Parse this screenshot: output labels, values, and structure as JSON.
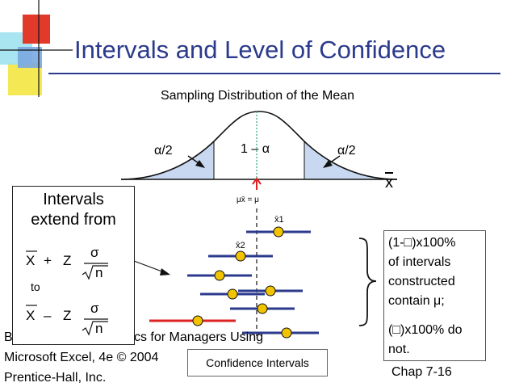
{
  "slide": {
    "title": "Intervals and Level of Confidence",
    "subtitle": "Sampling Distribution of the Mean",
    "chapter": "Chap 7-16",
    "footer_line1": "Basic Business Statistics for Managers Using",
    "footer_line2": "Microsoft Excel, 4e © 2004",
    "footer_line3": "Prentice-Hall, Inc."
  },
  "distribution": {
    "tail_left": "α/2",
    "tail_right": "α/2",
    "center": "1 – α",
    "axis": "x",
    "mean": "μx̄ = μ",
    "xbar1": "x̄1",
    "xbar2": "x̄2"
  },
  "left_box": {
    "heading_1": "Intervals",
    "heading_2": "extend from",
    "upper_formula": "X̄ + Z σ/√n",
    "to": "to",
    "lower_formula": "X̄ – Z σ/√n",
    "xbar": "X",
    "plus": "+",
    "minus": "–",
    "z": "Z",
    "sigma": "σ",
    "n": "n"
  },
  "right_box": {
    "line1": "(1-□)x100%",
    "line2": "of intervals",
    "line3": "constructed",
    "line4": "contain μ;",
    "line5": "(□)x100% do",
    "line6": "not."
  },
  "intervals_label": "Confidence Intervals",
  "colors": {
    "title": "#2b3a8c",
    "interval": "#2b3a8c",
    "missed_interval": "#dd2222",
    "point": "#f2c400",
    "tail_fill": "#c8d8f0"
  }
}
